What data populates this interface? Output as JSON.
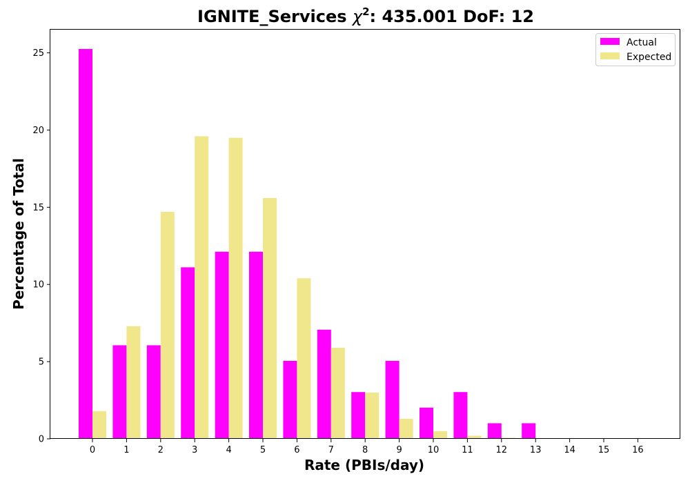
{
  "chart_data": {
    "type": "bar",
    "title_main": "IGNITE_Services ",
    "title_chi": "χ",
    "title_sup": "2",
    "title_rest": ": 435.001 DoF: 12",
    "xlabel": "Rate (PBIs/day)",
    "ylabel": "Percentage of Total",
    "categories": [
      "0",
      "1",
      "2",
      "3",
      "4",
      "5",
      "6",
      "7",
      "8",
      "9",
      "10",
      "11",
      "12",
      "13",
      "14",
      "15",
      "16"
    ],
    "ylim": [
      0,
      26.5
    ],
    "yticks": [
      "0",
      "5",
      "10",
      "15",
      "20",
      "25"
    ],
    "series": [
      {
        "name": "Actual",
        "color": "#ff00ff",
        "values": [
          25.25,
          6.06,
          6.06,
          11.11,
          12.12,
          12.12,
          5.05,
          7.07,
          3.03,
          5.05,
          2.02,
          3.03,
          1.01,
          1.01,
          0,
          0,
          0
        ]
      },
      {
        "name": "Expected",
        "color": "#f0e68c",
        "values": [
          1.8,
          7.3,
          14.7,
          19.6,
          19.5,
          15.6,
          10.4,
          5.9,
          3.0,
          1.3,
          0.5,
          0.2,
          0.07,
          0.02,
          0,
          0,
          0
        ]
      }
    ],
    "legend_position": "top-right",
    "grid": false
  }
}
